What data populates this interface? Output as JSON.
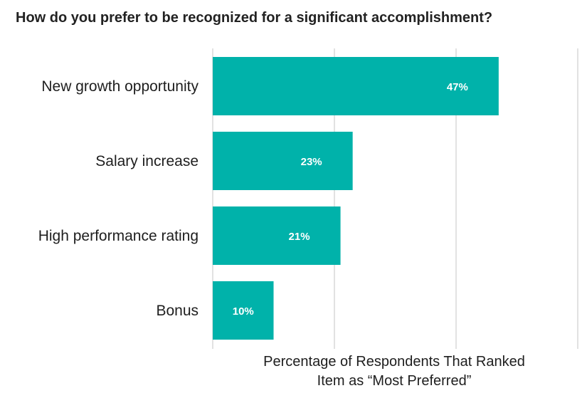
{
  "chart_data": {
    "type": "bar",
    "orientation": "horizontal",
    "title": "How do you prefer to be recognized for a significant accomplishment?",
    "categories": [
      "New growth opportunity",
      "Salary increase",
      "High performance rating",
      "Bonus"
    ],
    "values": [
      47,
      23,
      21,
      10
    ],
    "data_labels": [
      "47%",
      "23%",
      "21%",
      "10%"
    ],
    "xlabel": [
      "Percentage of Respondents That Ranked",
      "Item as “Most Preferred”"
    ],
    "ylabel": "",
    "xlim": [
      0,
      60
    ],
    "gridlines": [
      0,
      20,
      40,
      60
    ],
    "grid": true,
    "legend": "none",
    "bar_color": "#00B2AA",
    "grid_color": "#d9d9d9"
  }
}
